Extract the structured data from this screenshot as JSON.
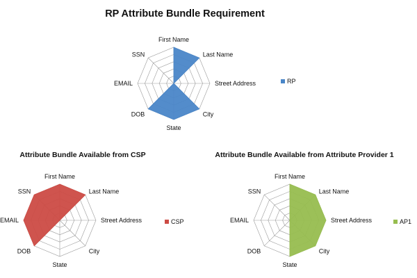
{
  "chart_data": [
    {
      "type": "radar",
      "title": "RP Attribute Bundle Requirement",
      "categories": [
        "First Name",
        "Last Name",
        "Street Address",
        "City",
        "State",
        "DOB",
        "EMAIL",
        "SSN"
      ],
      "series": [
        {
          "name": "RP",
          "values": [
            1,
            1,
            0,
            1,
            1,
            1,
            0,
            0
          ],
          "color": "#4a86c8"
        }
      ],
      "rmax": 1,
      "rings": 5,
      "legend_position": "right",
      "grid": true
    },
    {
      "type": "radar",
      "title": "Attribute Bundle Available from CSP",
      "categories": [
        "First Name",
        "Last Name",
        "Street Address",
        "City",
        "State",
        "DOB",
        "EMAIL",
        "SSN"
      ],
      "series": [
        {
          "name": "CSP",
          "values": [
            1,
            1,
            0,
            0,
            0,
            1,
            1,
            1
          ],
          "color": "#cc4b44"
        }
      ],
      "rmax": 1,
      "rings": 5,
      "legend_position": "right",
      "grid": true
    },
    {
      "type": "radar",
      "title": "Attribute Bundle Available from Attribute Provider 1",
      "categories": [
        "First Name",
        "Last Name",
        "Street Address",
        "City",
        "State",
        "DOB",
        "EMAIL",
        "SSN"
      ],
      "series": [
        {
          "name": "AP1",
          "values": [
            1,
            1,
            1,
            1,
            1,
            0,
            0,
            0
          ],
          "color": "#97bd4f"
        }
      ],
      "rmax": 1,
      "rings": 5,
      "legend_position": "right",
      "grid": true
    }
  ]
}
